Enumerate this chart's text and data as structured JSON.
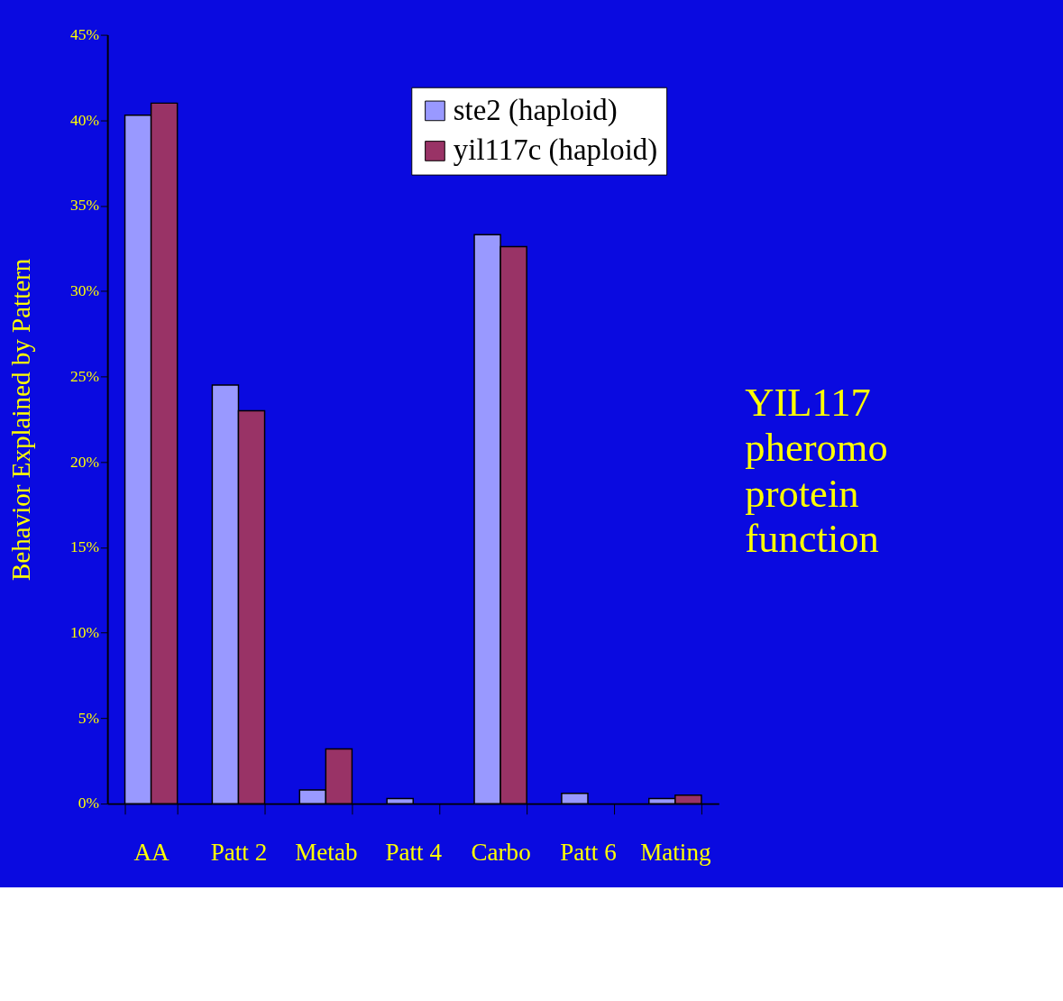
{
  "chart_data": {
    "type": "bar",
    "ylabel": "Behavior Explained by Pattern",
    "categories": [
      "AA",
      "Patt 2",
      "Metab",
      "Patt 4",
      "Carbo",
      "Patt 6",
      "Mating"
    ],
    "series": [
      {
        "name": "ste2 (haploid)",
        "color": "#9999ff",
        "values": [
          40.3,
          24.5,
          0.8,
          0.3,
          33.3,
          0.6,
          0.3
        ]
      },
      {
        "name": "yil117c (haploid)",
        "color": "#993366",
        "values": [
          41.0,
          23.0,
          3.2,
          null,
          32.6,
          null,
          0.5
        ]
      }
    ],
    "ylim": [
      0,
      45
    ],
    "yticks": [
      {
        "value": 0,
        "label": "0%"
      },
      {
        "value": 5,
        "label": "5%"
      },
      {
        "value": 10,
        "label": "10%"
      },
      {
        "value": 15,
        "label": "15%"
      },
      {
        "value": 20,
        "label": "20%"
      },
      {
        "value": 25,
        "label": "25%"
      },
      {
        "value": 30,
        "label": "30%"
      },
      {
        "value": 35,
        "label": "35%"
      },
      {
        "value": 40,
        "label": "40%"
      },
      {
        "value": 45,
        "label": "45%"
      }
    ],
    "grid": false,
    "legend": "top right",
    "annotations": [
      "YIL117\npheromo\nprotein\nfunction"
    ]
  }
}
